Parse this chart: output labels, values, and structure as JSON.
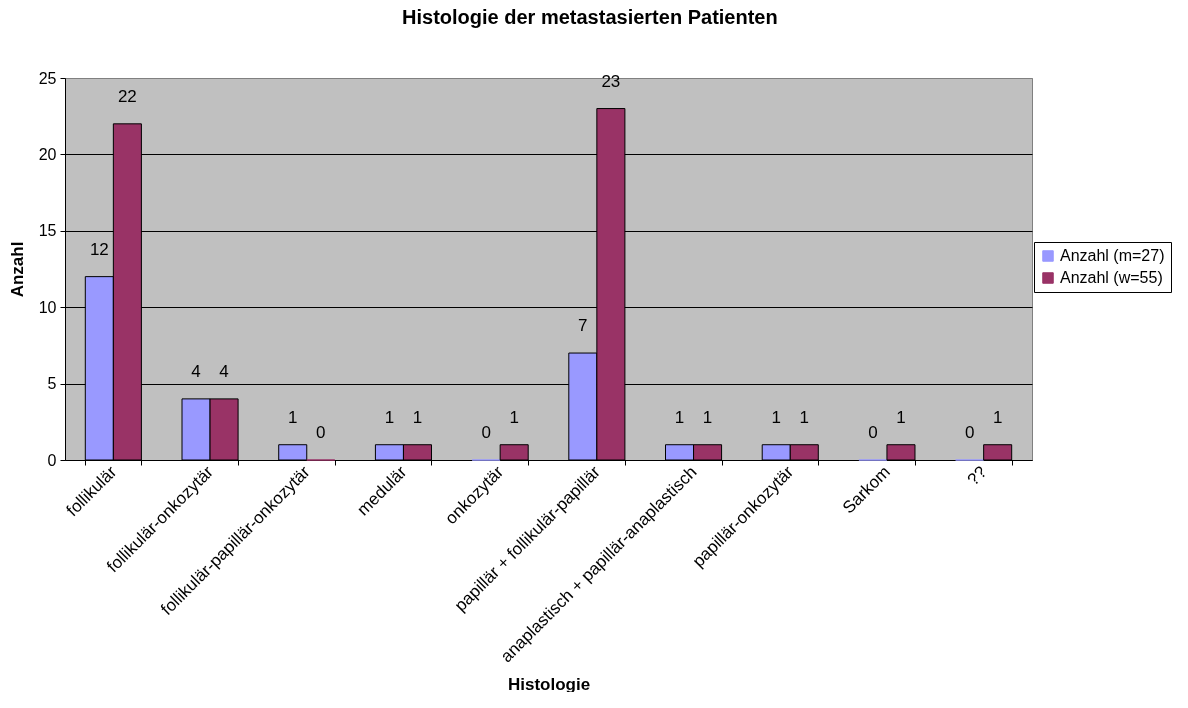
{
  "chart_data": {
    "type": "bar",
    "title": "Histologie der metastasierten Patienten",
    "xlabel": "Histologie",
    "ylabel": "Anzahl",
    "categories": [
      "follikulär",
      "follikulär-onkozytär",
      "follikulär-papillär-onkozytär",
      "medulär",
      "onkozytär",
      "papillär + follikulär-papillär",
      "anaplastisch + papillär-anaplastisch",
      "papillär-onkozytär",
      "Sarkom",
      "??"
    ],
    "series": [
      {
        "name": "Anzahl (m=27)",
        "color": "#9999ff",
        "values": [
          12,
          4,
          1,
          1,
          0,
          7,
          1,
          1,
          0,
          0
        ]
      },
      {
        "name": "Anzahl (w=55)",
        "color": "#993366",
        "values": [
          22,
          4,
          0,
          1,
          1,
          23,
          1,
          1,
          1,
          1
        ]
      }
    ],
    "ylim": [
      0,
      25
    ],
    "yticks": [
      0,
      5,
      10,
      15,
      20,
      25
    ],
    "grid": "y",
    "legend": "right",
    "data_labels": true
  }
}
